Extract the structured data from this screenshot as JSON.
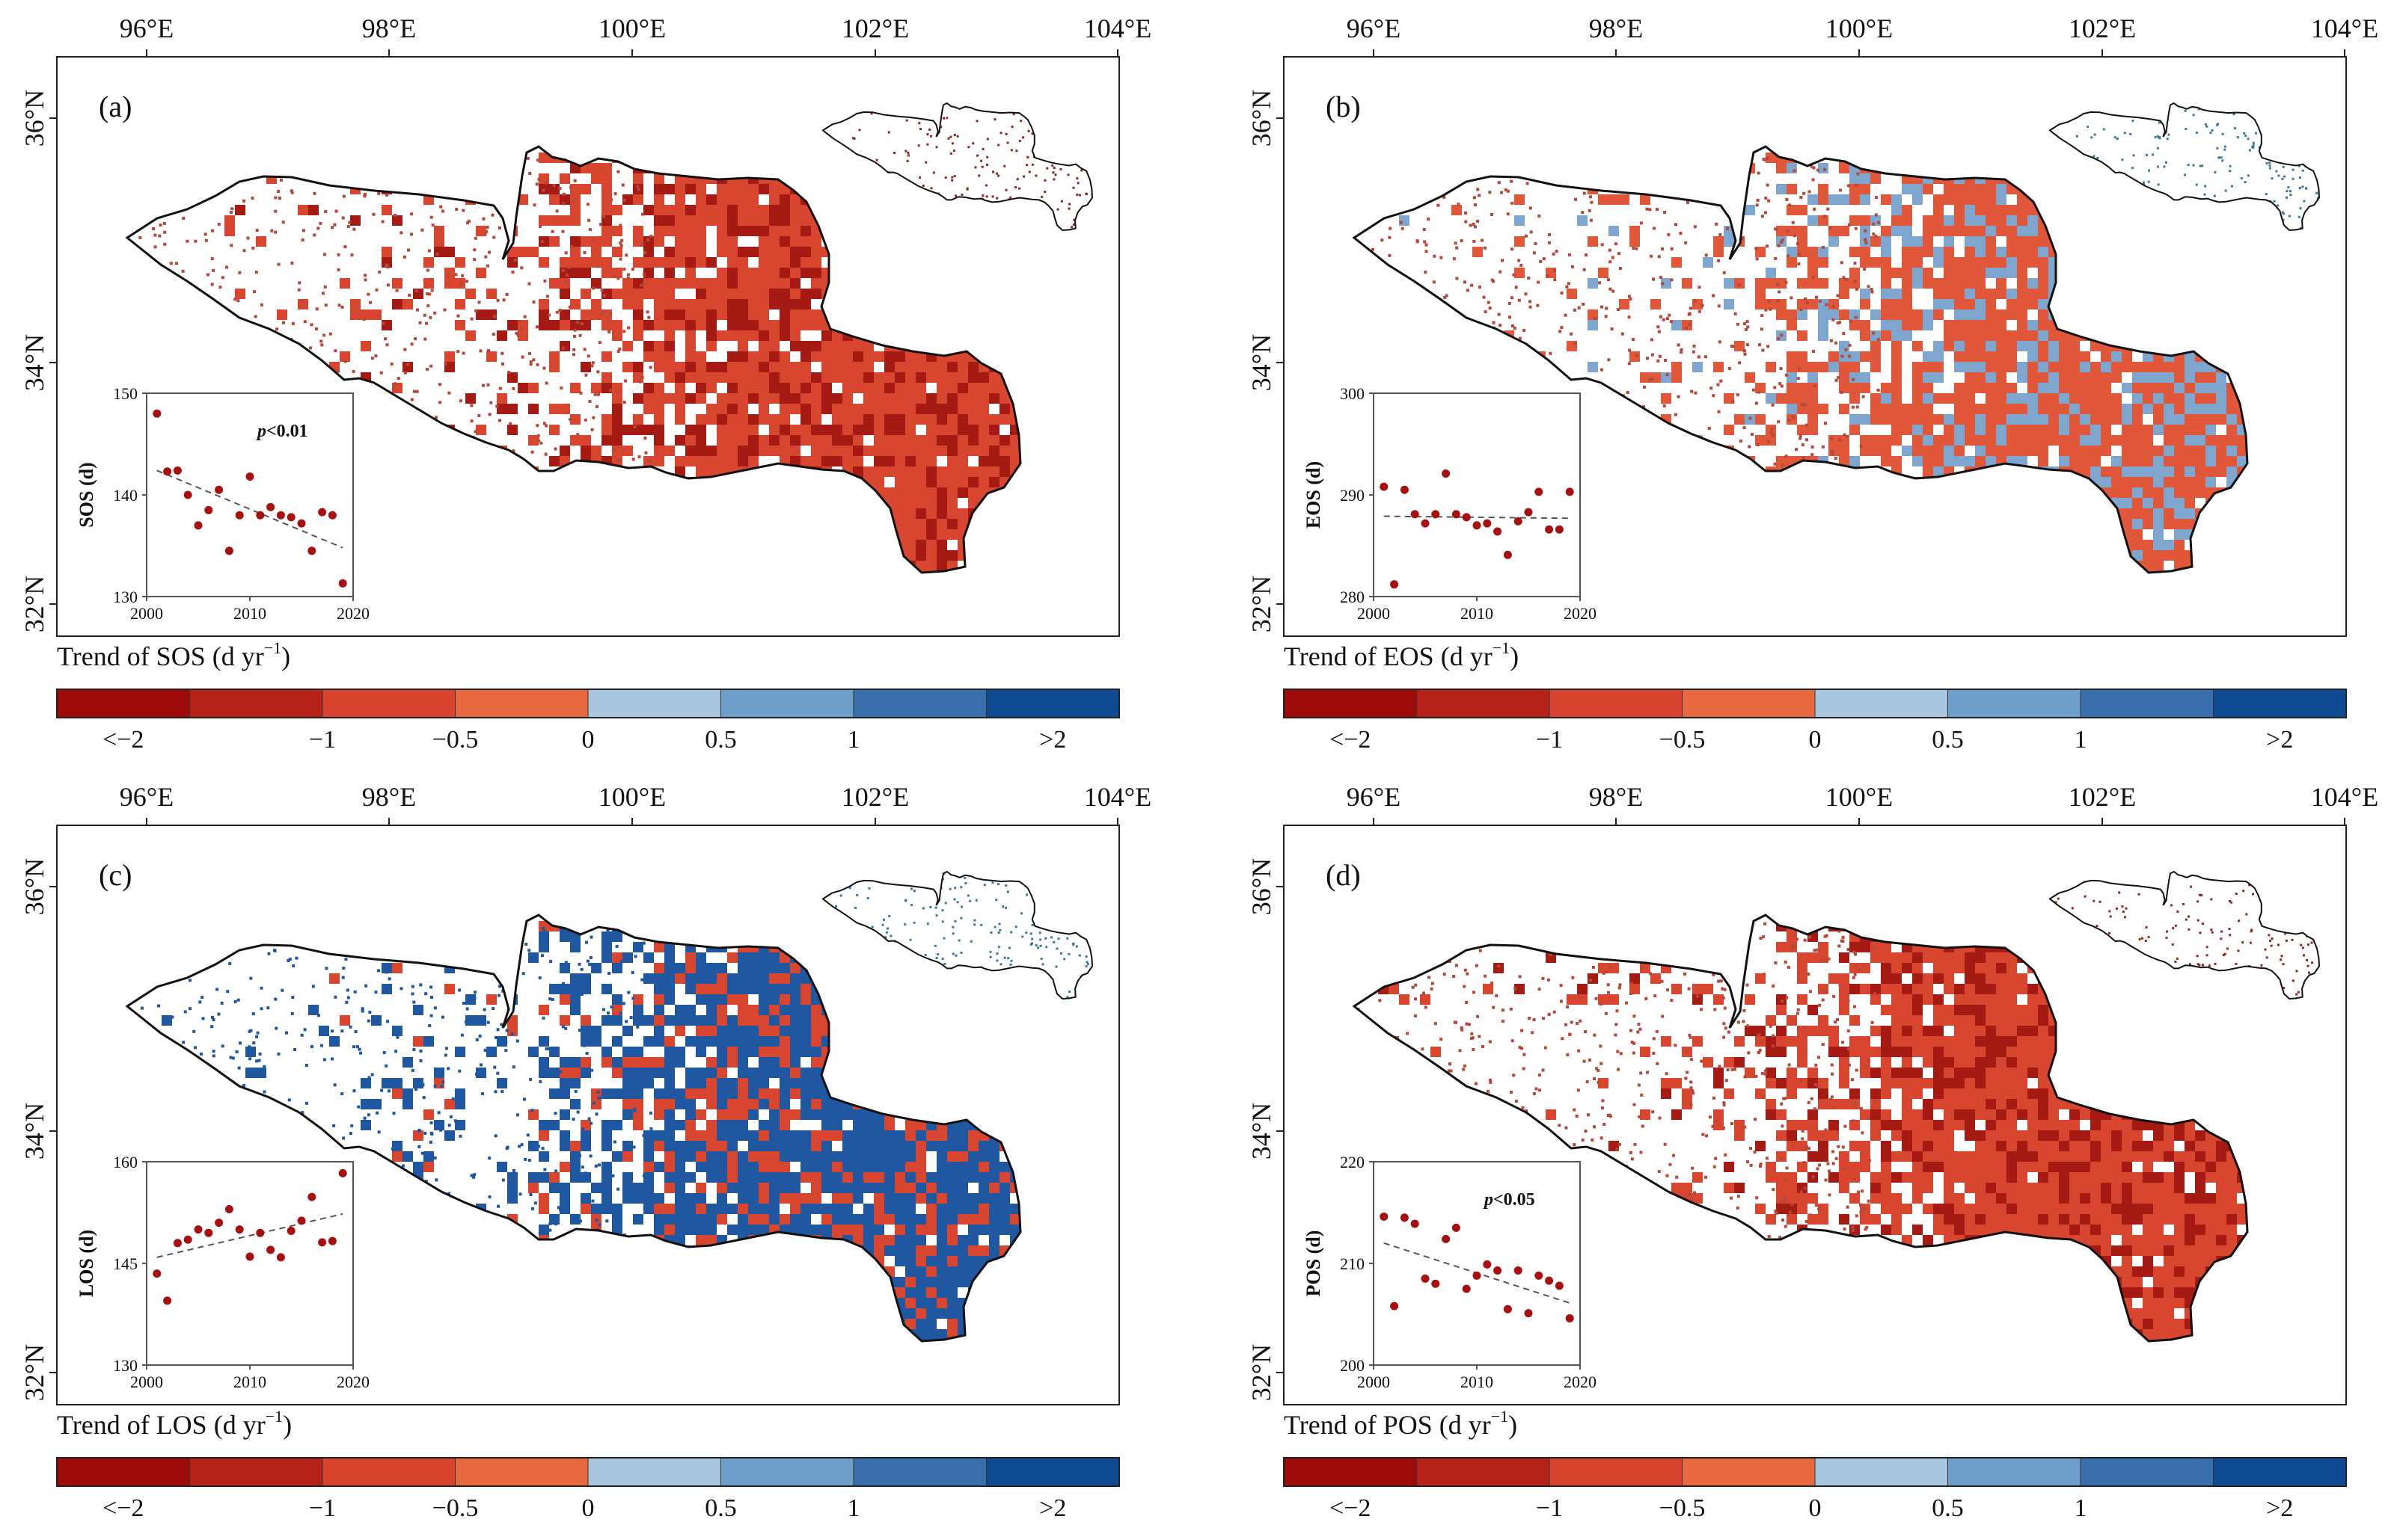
{
  "figure": {
    "lon_ticks": [
      "96°E",
      "98°E",
      "100°E",
      "102°E",
      "104°E"
    ],
    "lat_ticks": [
      "36°N",
      "34°N",
      "32°N"
    ],
    "colorbar_labels": [
      "<−2",
      "−1",
      "−0.5",
      "0",
      "0.5",
      "1",
      ">2"
    ],
    "colorbar_colors": [
      "#9e0a0a",
      "#b52218",
      "#d8432f",
      "#e8683f",
      "#a9c6df",
      "#6e9fcb",
      "#3a6fae",
      "#0f4b92"
    ],
    "inset_x_ticks": [
      "2000",
      "2010",
      "2020"
    ],
    "units_text": "(d yr",
    "units_exponent": "−1",
    "units_close": ")",
    "region_fill_empty": "#ffffff"
  },
  "panels": [
    {
      "id": "a",
      "label": "(a)",
      "trend_title": "Trend of SOS",
      "dominant_color": "#d9462f",
      "secondary_color": "#a51a12",
      "chart_data": {
        "type": "scatter",
        "ylabel": "SOS (d)",
        "y_ticks": [
          "150",
          "140",
          "130"
        ],
        "xlim": [
          2000,
          2020
        ],
        "ylim": [
          130,
          150
        ],
        "annotation": "<0.01",
        "annotation_p": "p",
        "x": [
          2001,
          2002,
          2003,
          2004,
          2005,
          2006,
          2007,
          2008,
          2009,
          2010,
          2011,
          2012,
          2013,
          2014,
          2015,
          2016,
          2017,
          2018,
          2019
        ],
        "y": [
          148,
          142.3,
          142.4,
          140,
          137,
          138.5,
          140.5,
          134.5,
          138,
          141.8,
          138,
          138.8,
          138,
          137.8,
          137.2,
          134.5,
          138.3,
          138,
          131.3
        ],
        "trend": [
          [
            2001,
            142.4
          ],
          [
            2019,
            134.8
          ]
        ]
      }
    },
    {
      "id": "b",
      "label": "(b)",
      "trend_title": "Trend of EOS",
      "dominant_color": "#e0573a",
      "secondary_color": "#7fa6cf",
      "chart_data": {
        "type": "scatter",
        "ylabel": "EOS (d)",
        "y_ticks": [
          "300",
          "290",
          "280"
        ],
        "xlim": [
          2000,
          2020
        ],
        "ylim": [
          280,
          300
        ],
        "annotation": "",
        "annotation_p": "",
        "x": [
          2001,
          2002,
          2003,
          2004,
          2005,
          2006,
          2007,
          2008,
          2009,
          2010,
          2011,
          2012,
          2013,
          2014,
          2015,
          2016,
          2017,
          2018,
          2019
        ],
        "y": [
          290.8,
          281.2,
          290.5,
          288.1,
          287.2,
          288.1,
          292.1,
          288.1,
          287.8,
          287,
          287.2,
          286.4,
          284.1,
          287.4,
          288.3,
          290.3,
          286.6,
          286.6,
          290.3
        ],
        "trend": [
          [
            2001,
            287.9
          ],
          [
            2019,
            287.7
          ]
        ]
      }
    },
    {
      "id": "c",
      "label": "(c)",
      "trend_title": "Trend of LOS",
      "dominant_color": "#1f57a0",
      "secondary_color": "#d9462f",
      "chart_data": {
        "type": "scatter",
        "ylabel": "LOS (d)",
        "y_ticks": [
          "160",
          "145",
          "130"
        ],
        "xlim": [
          2000,
          2020
        ],
        "ylim": [
          130,
          160
        ],
        "annotation": "",
        "annotation_p": "",
        "x": [
          2001,
          2002,
          2003,
          2004,
          2005,
          2006,
          2007,
          2008,
          2009,
          2010,
          2011,
          2012,
          2013,
          2014,
          2015,
          2016,
          2017,
          2018,
          2019
        ],
        "y": [
          143.5,
          139.5,
          148,
          148.5,
          150,
          149.5,
          151,
          153,
          150,
          146,
          149.5,
          147,
          145.9,
          149.8,
          151.3,
          154.8,
          148.1,
          148.3,
          158.3
        ],
        "trend": [
          [
            2001,
            145.9
          ],
          [
            2019,
            152.3
          ]
        ]
      }
    },
    {
      "id": "d",
      "label": "(d)",
      "trend_title": "Trend of POS",
      "dominant_color": "#d9462f",
      "secondary_color": "#a51a12",
      "chart_data": {
        "type": "scatter",
        "ylabel": "POS (d)",
        "y_ticks": [
          "220",
          "210",
          "200"
        ],
        "xlim": [
          2000,
          2020
        ],
        "ylim": [
          200,
          220
        ],
        "annotation": "<0.05",
        "annotation_p": "p",
        "x": [
          2001,
          2002,
          2003,
          2004,
          2005,
          2006,
          2007,
          2008,
          2009,
          2010,
          2011,
          2012,
          2013,
          2014,
          2015,
          2016,
          2017,
          2018,
          2019
        ],
        "y": [
          214.6,
          205.8,
          214.5,
          213.9,
          208.5,
          208,
          212.4,
          213.5,
          207.5,
          208.8,
          209.9,
          209.3,
          205.5,
          209.3,
          205.1,
          208.8,
          208.3,
          207.8,
          204.6
        ],
        "trend": [
          [
            2001,
            212.0
          ],
          [
            2019,
            206.1
          ]
        ]
      }
    }
  ]
}
